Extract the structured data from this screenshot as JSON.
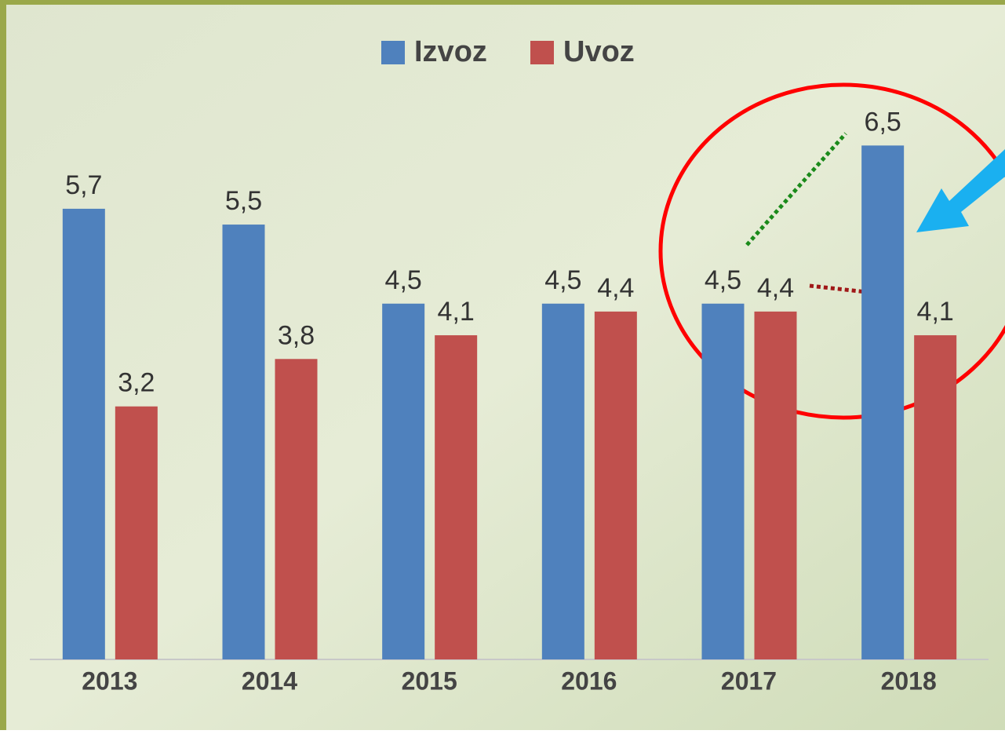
{
  "chart_data": {
    "type": "bar",
    "categories": [
      "2013",
      "2014",
      "2015",
      "2016",
      "2017",
      "2018"
    ],
    "series": [
      {
        "name": "Izvoz",
        "color": "#4f81bd",
        "values": [
          5.7,
          5.5,
          4.5,
          4.5,
          4.5,
          6.5
        ],
        "value_labels": [
          "5,7",
          "5,5",
          "4,5",
          "4,5",
          "4,5",
          "6,5"
        ]
      },
      {
        "name": "Uvoz",
        "color": "#c0504d",
        "values": [
          3.2,
          3.8,
          4.1,
          4.4,
          4.4,
          4.1
        ],
        "value_labels": [
          "3,2",
          "3,8",
          "4,1",
          "4,4",
          "4,4",
          "4,1"
        ]
      }
    ],
    "ylim": [
      0,
      7
    ],
    "legend": "top"
  }
}
